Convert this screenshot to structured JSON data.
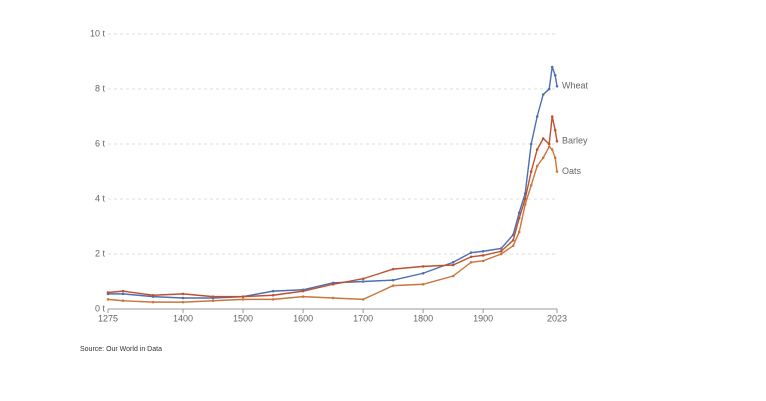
{
  "chart_data": {
    "type": "line",
    "x": [
      1275,
      1300,
      1350,
      1400,
      1450,
      1500,
      1550,
      1600,
      1650,
      1700,
      1750,
      1800,
      1850,
      1880,
      1900,
      1930,
      1950,
      1960,
      1970,
      1980,
      1990,
      2000,
      2010,
      2015,
      2020,
      2023
    ],
    "series": [
      {
        "name": "Wheat",
        "color": "#4c6fb3",
        "values": [
          0.55,
          0.55,
          0.45,
          0.4,
          0.4,
          0.45,
          0.65,
          0.7,
          0.95,
          1.0,
          1.05,
          1.3,
          1.7,
          2.05,
          2.1,
          2.2,
          2.7,
          3.5,
          4.2,
          6.0,
          7.0,
          7.8,
          8.0,
          8.8,
          8.5,
          8.1
        ]
      },
      {
        "name": "Barley",
        "color": "#c0502d",
        "values": [
          0.6,
          0.65,
          0.5,
          0.55,
          0.45,
          0.45,
          0.5,
          0.65,
          0.9,
          1.1,
          1.45,
          1.55,
          1.6,
          1.9,
          1.95,
          2.1,
          2.5,
          3.3,
          4.0,
          5.0,
          5.8,
          6.2,
          6.0,
          7.0,
          6.5,
          6.1
        ]
      },
      {
        "name": "Oats",
        "color": "#c8763c",
        "values": [
          0.35,
          0.3,
          0.25,
          0.25,
          0.3,
          0.35,
          0.35,
          0.45,
          0.4,
          0.35,
          0.85,
          0.9,
          1.2,
          1.7,
          1.75,
          2.0,
          2.3,
          2.8,
          3.8,
          4.5,
          5.2,
          5.5,
          5.9,
          5.8,
          5.5,
          5.0
        ]
      }
    ],
    "xlim": [
      1275,
      2023
    ],
    "xticks": [
      1275,
      1400,
      1500,
      1600,
      1700,
      1800,
      1900,
      2023
    ],
    "ylim": [
      0,
      10
    ],
    "yticks": [
      {
        "value": 0,
        "label": "0 t"
      },
      {
        "value": 2,
        "label": "2 t"
      },
      {
        "value": 4,
        "label": "4 t"
      },
      {
        "value": 6,
        "label": "6 t"
      },
      {
        "value": 8,
        "label": "8 t"
      },
      {
        "value": 10,
        "label": "10 t"
      }
    ],
    "grid": true,
    "source": "Source: Our World in Data"
  }
}
